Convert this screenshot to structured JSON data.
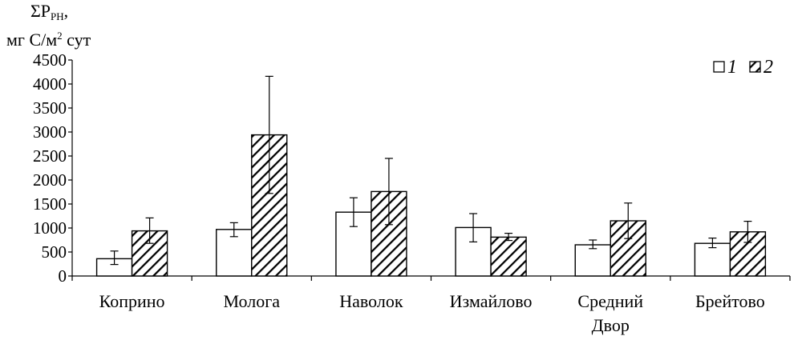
{
  "y_axis_label": {
    "symbol": "ΣP",
    "subscript": "PH",
    "suffix": ",",
    "units_prefix": "мг С/м",
    "units_power": "2",
    "units_suffix": " сут"
  },
  "chart_data": {
    "type": "bar",
    "categories": [
      [
        "Коприно"
      ],
      [
        "Молога"
      ],
      [
        "Наволок"
      ],
      [
        "Измайлово"
      ],
      [
        "Средний",
        "Двор"
      ],
      [
        "Брейтово"
      ]
    ],
    "series": [
      {
        "name": "1",
        "pattern": "open",
        "values": [
          360,
          970,
          1330,
          1010,
          650,
          680
        ],
        "error_low": [
          240,
          820,
          1030,
          710,
          570,
          590
        ],
        "error_high": [
          520,
          1110,
          1630,
          1300,
          750,
          790
        ]
      },
      {
        "name": "2",
        "pattern": "hatched",
        "values": [
          940,
          2940,
          1760,
          810,
          1150,
          920
        ],
        "error_low": [
          680,
          1720,
          1070,
          740,
          780,
          700
        ],
        "error_high": [
          1210,
          4160,
          2450,
          890,
          1520,
          1140
        ]
      }
    ],
    "ylim": [
      0,
      4500
    ],
    "yticks": [
      0,
      500,
      1000,
      1500,
      2000,
      2500,
      3000,
      3500,
      4000,
      4500
    ],
    "grid": false,
    "legend_position": "top-right",
    "colors": {
      "bar_fill": "#ffffff",
      "stroke": "#000000",
      "hatch": "#000000"
    }
  }
}
